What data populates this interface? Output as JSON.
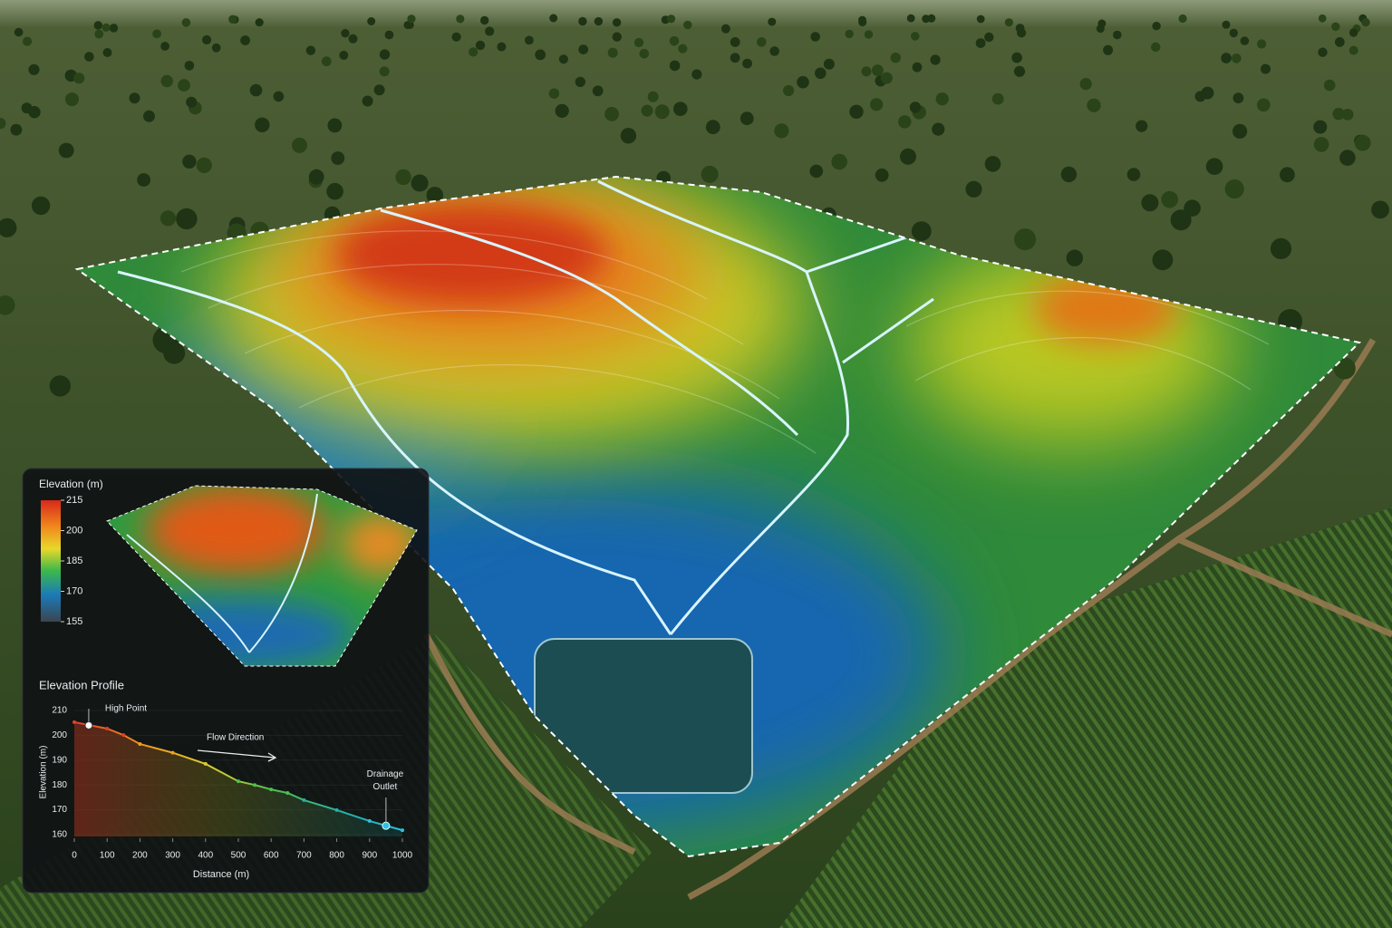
{
  "legend": {
    "title": "Elevation (m)",
    "lim": [
      155,
      215
    ],
    "ticks": [
      215,
      200,
      185,
      170,
      155
    ]
  },
  "chart_data": {
    "type": "line",
    "title": "Elevation Profile",
    "x_label": "Distance (m)",
    "y_label": "Elevation (m)",
    "x": [
      0,
      100,
      150,
      200,
      300,
      400,
      500,
      550,
      600,
      650,
      700,
      800,
      900,
      950,
      1000
    ],
    "series": [
      {
        "values": [
          205.3,
          202.7,
          200.1,
          196.5,
          193.0,
          188.5,
          181.5,
          180.0,
          178.2,
          176.8,
          173.9,
          169.9,
          165.5,
          163.6,
          161.8
        ]
      }
    ],
    "xlim": [
      0,
      1000
    ],
    "ylim": [
      160,
      210
    ],
    "xticks": [
      0,
      100,
      200,
      300,
      400,
      500,
      600,
      700,
      800,
      900,
      1000
    ],
    "yticks": [
      160,
      170,
      180,
      190,
      200,
      210
    ],
    "annotations": [
      {
        "text": "High Point",
        "x": 44,
        "y": 204
      },
      {
        "text": "Flow Direction"
      },
      {
        "text": "Drainage Outlet",
        "x": 950,
        "y": 163.6
      }
    ]
  }
}
